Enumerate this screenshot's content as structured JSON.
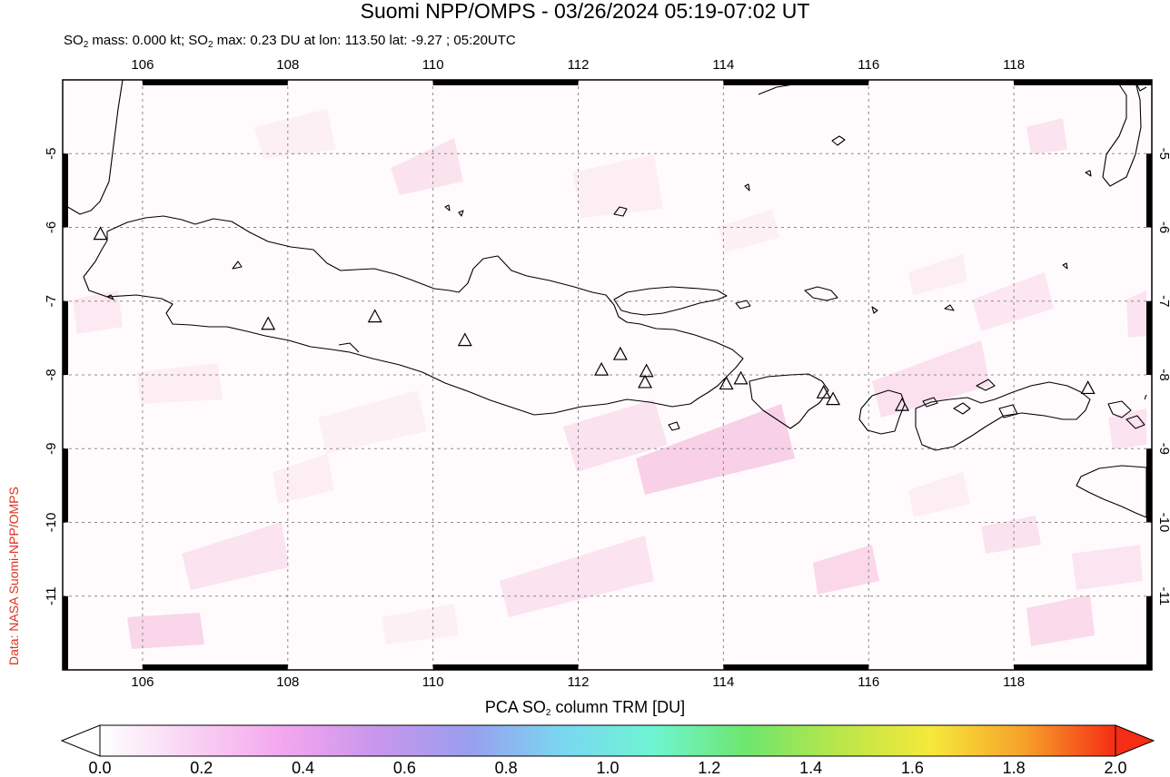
{
  "title": "Suomi NPP/OMPS - 03/26/2024 05:19-07:02 UT",
  "subtitle": {
    "part1": "SO",
    "sub1": "2",
    "part2": " mass: 0.000 kt; SO",
    "sub2": "2",
    "part3": " max: 0.23 DU at lon: 113.50 lat: -9.27 ; 05:20UTC"
  },
  "credit": "Data: NASA Suomi-NPP/OMPS",
  "map": {
    "lon_range": [
      104.9,
      119.9
    ],
    "lat_range": [
      -12.0,
      -4.0
    ],
    "lon_ticks": [
      106,
      108,
      110,
      112,
      114,
      116,
      118
    ],
    "lat_ticks": [
      -5,
      -6,
      -7,
      -8,
      -9,
      -10,
      -11
    ],
    "lon_tick_labels": [
      "106",
      "108",
      "110",
      "112",
      "114",
      "116",
      "118"
    ],
    "lat_tick_labels": [
      "-5",
      "-6",
      "-7",
      "-8",
      "-9",
      "-10",
      "-11"
    ],
    "gridlines": true,
    "coastline_color": "#000000",
    "volcano_marker": "triangle-outline",
    "volcanoes": [
      {
        "lon": 105.42,
        "lat": -6.1
      },
      {
        "lon": 107.73,
        "lat": -7.32
      },
      {
        "lon": 109.2,
        "lat": -7.22
      },
      {
        "lon": 110.44,
        "lat": -7.54
      },
      {
        "lon": 112.32,
        "lat": -7.94
      },
      {
        "lon": 112.58,
        "lat": -7.73
      },
      {
        "lon": 112.94,
        "lat": -7.96
      },
      {
        "lon": 112.92,
        "lat": -8.11
      },
      {
        "lon": 114.04,
        "lat": -8.13
      },
      {
        "lon": 114.24,
        "lat": -8.06
      },
      {
        "lon": 115.38,
        "lat": -8.25
      },
      {
        "lon": 115.51,
        "lat": -8.34
      },
      {
        "lon": 116.46,
        "lat": -8.42
      },
      {
        "lon": 119.02,
        "lat": -8.19
      }
    ]
  },
  "colorbar": {
    "label_pre": "PCA SO",
    "label_sub": "2",
    "label_post": " column TRM [DU]",
    "min": 0.0,
    "max": 2.0,
    "ticks": [
      "0.0",
      "0.2",
      "0.4",
      "0.6",
      "0.8",
      "1.0",
      "1.2",
      "1.4",
      "1.6",
      "1.8",
      "2.0"
    ],
    "colors": [
      "#ffffff",
      "#f9d2f3",
      "#f3a6ef",
      "#c896ec",
      "#9a9eee",
      "#7ad6f1",
      "#6ef5d2",
      "#6ee66e",
      "#b9e649",
      "#f6e93a",
      "#f6a22a",
      "#f52d15"
    ]
  }
}
